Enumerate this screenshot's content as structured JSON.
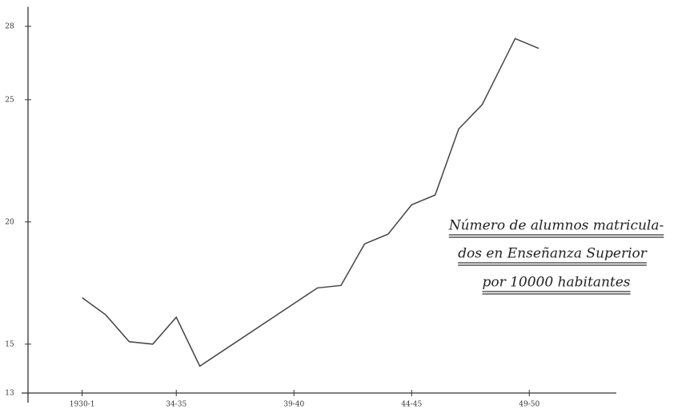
{
  "chart_data": {
    "type": "line",
    "annotations": [
      "Número de alumnos matricula-",
      "dos en Enseñanza Superior",
      "por 10000 habitantes"
    ],
    "x": [
      1930,
      1931,
      1932,
      1933,
      1934,
      1935,
      1940,
      1941,
      1942,
      1943,
      1944,
      1945,
      1946,
      1947,
      1948.4,
      1949.4
    ],
    "series": [
      {
        "color": "#444",
        "values": [
          16.9,
          16.2,
          15.1,
          15.0,
          16.1,
          14.1,
          17.3,
          17.4,
          19.1,
          19.5,
          20.7,
          21.1,
          23.8,
          24.8,
          27.5,
          27.1
        ]
      }
    ],
    "xlim": [
      1927.7,
      1952.7
    ],
    "xticks": [
      {
        "value": 1930,
        "label": "1930-1"
      },
      {
        "value": 1934,
        "label": "34-35"
      },
      {
        "value": 1939,
        "label": "39-40"
      },
      {
        "value": 1944,
        "label": "44-45"
      },
      {
        "value": 1949,
        "label": "49-50"
      }
    ],
    "ylim": [
      13,
      28.8
    ],
    "yticks": [
      13,
      15,
      20,
      25,
      28
    ]
  }
}
